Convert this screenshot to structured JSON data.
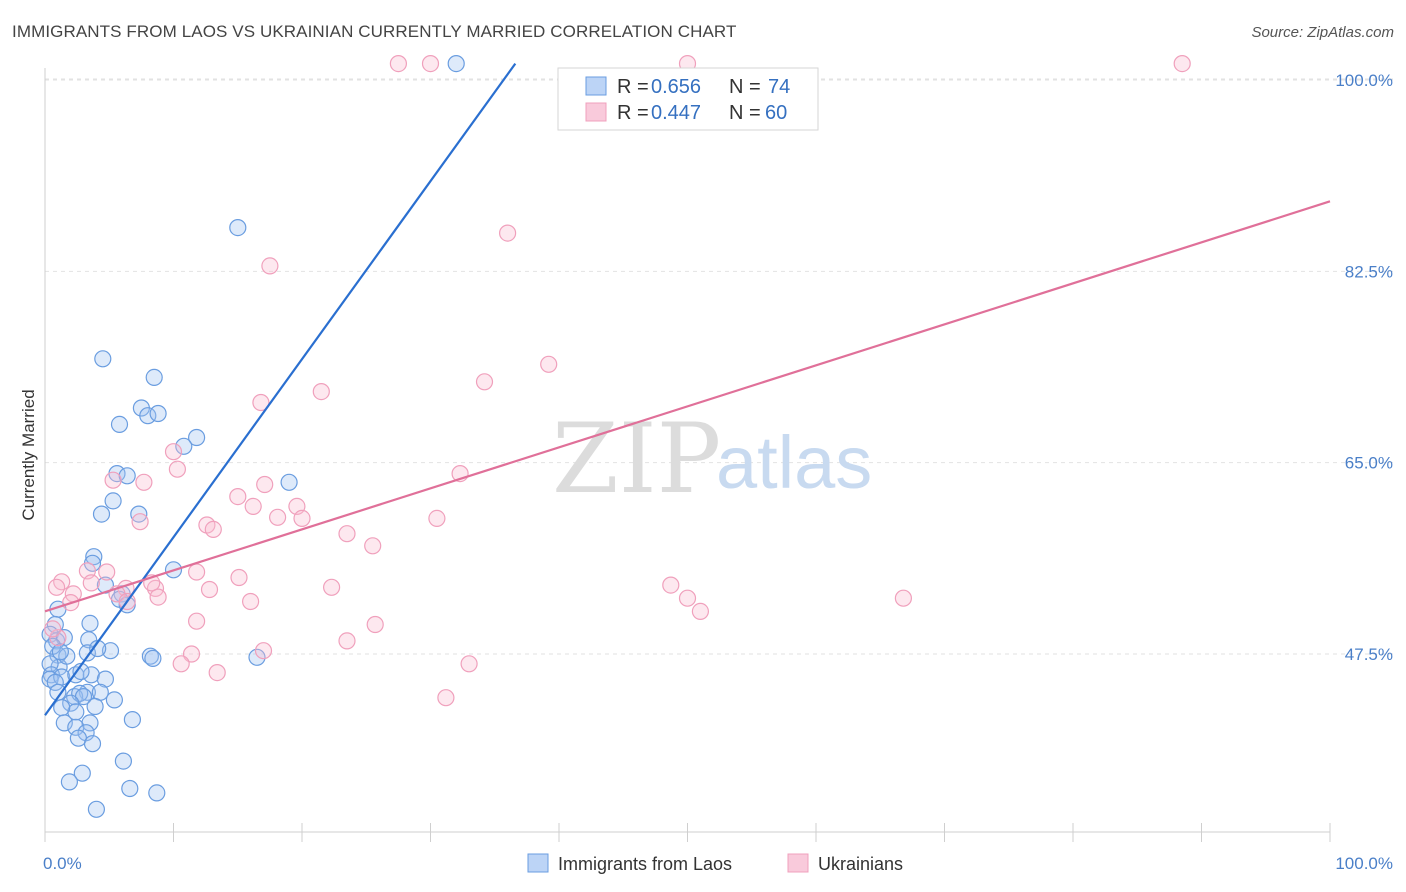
{
  "title": "IMMIGRANTS FROM LAOS VS UKRAINIAN CURRENTLY MARRIED CORRELATION CHART",
  "source": "Source: ZipAtlas.com",
  "watermark": {
    "part1": "ZIP",
    "part2": "atlas"
  },
  "chart_data": {
    "type": "scatter",
    "ylabel": "Currently Married",
    "xlabel": "",
    "xlim": [
      0,
      100
    ],
    "ylim": [
      30,
      101.5
    ],
    "x_tick_labels": {
      "left": "0.0%",
      "right": "100.0%"
    },
    "y_ticks": [
      {
        "value": 47.5,
        "label": "47.5%"
      },
      {
        "value": 65.0,
        "label": "65.0%"
      },
      {
        "value": 82.5,
        "label": "82.5%"
      },
      {
        "value": 100.0,
        "label": "100.0%"
      }
    ],
    "legend": {
      "r_label": "R =",
      "n_label": "N =",
      "entries": [
        {
          "r": "0.656",
          "n": "74"
        },
        {
          "r": "0.447",
          "n": "60"
        }
      ]
    },
    "series": [
      {
        "name": "Immigrants from Laos",
        "color": "#6a9de0",
        "line_color": "#2a6fd0",
        "trend": {
          "x": [
            0,
            36.6
          ],
          "y": [
            41.9,
            101.5
          ]
        },
        "points": [
          [
            32.0,
            101.5
          ],
          [
            15.0,
            86.5
          ],
          [
            4.5,
            74.5
          ],
          [
            8.5,
            72.8
          ],
          [
            7.5,
            70.0
          ],
          [
            8.0,
            69.3
          ],
          [
            5.8,
            68.5
          ],
          [
            8.8,
            69.5
          ],
          [
            11.8,
            67.3
          ],
          [
            10.8,
            66.5
          ],
          [
            19.0,
            63.2
          ],
          [
            5.6,
            64.0
          ],
          [
            6.4,
            63.8
          ],
          [
            5.3,
            61.5
          ],
          [
            4.4,
            60.3
          ],
          [
            7.3,
            60.3
          ],
          [
            3.8,
            56.4
          ],
          [
            3.7,
            55.8
          ],
          [
            10.0,
            55.2
          ],
          [
            4.7,
            53.8
          ],
          [
            6.0,
            53.0
          ],
          [
            5.8,
            52.5
          ],
          [
            6.4,
            52.0
          ],
          [
            1.0,
            51.6
          ],
          [
            0.8,
            50.2
          ],
          [
            3.5,
            50.3
          ],
          [
            0.4,
            49.3
          ],
          [
            0.9,
            48.7
          ],
          [
            1.0,
            47.4
          ],
          [
            3.4,
            48.8
          ],
          [
            3.3,
            47.6
          ],
          [
            5.1,
            47.8
          ],
          [
            8.2,
            47.3
          ],
          [
            8.4,
            47.1
          ],
          [
            16.5,
            47.2
          ],
          [
            1.1,
            46.3
          ],
          [
            1.7,
            47.3
          ],
          [
            0.4,
            46.6
          ],
          [
            0.5,
            45.6
          ],
          [
            0.4,
            45.2
          ],
          [
            1.3,
            45.4
          ],
          [
            2.4,
            45.6
          ],
          [
            3.6,
            45.6
          ],
          [
            4.7,
            45.2
          ],
          [
            0.8,
            44.9
          ],
          [
            3.3,
            44.0
          ],
          [
            2.3,
            43.6
          ],
          [
            2.7,
            43.9
          ],
          [
            3.0,
            43.6
          ],
          [
            4.3,
            44.0
          ],
          [
            5.4,
            43.3
          ],
          [
            2.0,
            43.0
          ],
          [
            2.4,
            42.2
          ],
          [
            1.3,
            42.6
          ],
          [
            1.5,
            41.2
          ],
          [
            3.5,
            41.2
          ],
          [
            2.4,
            40.8
          ],
          [
            6.8,
            41.5
          ],
          [
            3.2,
            40.3
          ],
          [
            2.6,
            39.8
          ],
          [
            3.7,
            39.3
          ],
          [
            6.1,
            37.7
          ],
          [
            2.9,
            36.6
          ],
          [
            1.9,
            35.8
          ],
          [
            6.6,
            35.2
          ],
          [
            8.7,
            34.8
          ],
          [
            4.0,
            33.3
          ],
          [
            1.5,
            49.0
          ],
          [
            0.6,
            48.2
          ],
          [
            1.2,
            47.7
          ],
          [
            4.1,
            48.0
          ],
          [
            2.8,
            45.9
          ],
          [
            1.0,
            44.0
          ],
          [
            3.9,
            42.7
          ]
        ]
      },
      {
        "name": "Ukrainians",
        "color": "#f0a0bc",
        "line_color": "#e07099",
        "trend": {
          "x": [
            0,
            100
          ],
          "y": [
            51.4,
            88.9
          ]
        },
        "points": [
          [
            27.5,
            101.5
          ],
          [
            30.0,
            101.5
          ],
          [
            50.0,
            101.5
          ],
          [
            88.5,
            101.5
          ],
          [
            36.0,
            86.0
          ],
          [
            17.5,
            83.0
          ],
          [
            39.2,
            74.0
          ],
          [
            34.2,
            72.4
          ],
          [
            21.5,
            71.5
          ],
          [
            16.8,
            70.5
          ],
          [
            10.0,
            66.0
          ],
          [
            10.3,
            64.4
          ],
          [
            32.3,
            64.0
          ],
          [
            5.3,
            63.4
          ],
          [
            7.7,
            63.2
          ],
          [
            17.1,
            63.0
          ],
          [
            15.0,
            61.9
          ],
          [
            16.2,
            61.0
          ],
          [
            19.6,
            61.0
          ],
          [
            18.1,
            60.0
          ],
          [
            20.0,
            59.9
          ],
          [
            30.5,
            59.9
          ],
          [
            12.6,
            59.3
          ],
          [
            13.1,
            58.9
          ],
          [
            7.4,
            59.6
          ],
          [
            23.5,
            58.5
          ],
          [
            25.5,
            57.4
          ],
          [
            11.8,
            55.0
          ],
          [
            3.3,
            55.1
          ],
          [
            4.8,
            55.0
          ],
          [
            1.3,
            54.1
          ],
          [
            3.6,
            54.0
          ],
          [
            6.3,
            53.5
          ],
          [
            8.6,
            53.5
          ],
          [
            12.8,
            53.4
          ],
          [
            8.3,
            54.0
          ],
          [
            15.1,
            54.5
          ],
          [
            0.9,
            53.6
          ],
          [
            2.2,
            53.0
          ],
          [
            5.6,
            53.0
          ],
          [
            8.8,
            52.7
          ],
          [
            6.4,
            52.3
          ],
          [
            2.0,
            52.2
          ],
          [
            16.0,
            52.3
          ],
          [
            22.3,
            53.6
          ],
          [
            48.7,
            53.8
          ],
          [
            50.0,
            52.6
          ],
          [
            51.0,
            51.4
          ],
          [
            66.8,
            52.6
          ],
          [
            11.8,
            50.5
          ],
          [
            1.0,
            49.0
          ],
          [
            0.6,
            49.8
          ],
          [
            25.7,
            50.2
          ],
          [
            23.5,
            48.7
          ],
          [
            11.4,
            47.5
          ],
          [
            10.6,
            46.6
          ],
          [
            33.0,
            46.6
          ],
          [
            17.0,
            47.8
          ],
          [
            13.4,
            45.8
          ],
          [
            31.2,
            43.5
          ]
        ]
      }
    ]
  }
}
